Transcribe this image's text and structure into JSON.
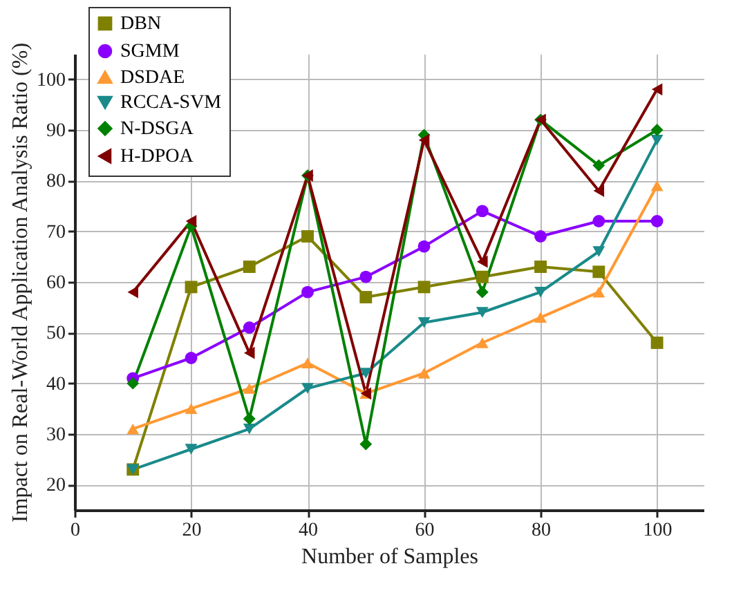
{
  "chart_data": {
    "type": "line",
    "xlabel": "Number of Samples",
    "ylabel": "Impact on Real-World Application Analysis Ratio (%)",
    "x": [
      10,
      20,
      30,
      40,
      50,
      60,
      70,
      80,
      90,
      100
    ],
    "series": [
      {
        "name": "DBN",
        "color": "#808000",
        "marker": "square",
        "values": [
          23,
          59,
          63,
          69,
          57,
          59,
          61,
          63,
          62,
          48
        ]
      },
      {
        "name": "SGMM",
        "color": "#8a00ff",
        "marker": "circle",
        "values": [
          41,
          45,
          51,
          58,
          61,
          67,
          74,
          69,
          72,
          72
        ]
      },
      {
        "name": "DSDAE",
        "color": "#ff9933",
        "marker": "triangle",
        "values": [
          31,
          35,
          39,
          44,
          38,
          42,
          48,
          53,
          58,
          79
        ]
      },
      {
        "name": "RCCA-SVM",
        "color": "#1a8a8a",
        "marker": "triangle-down",
        "values": [
          23,
          27,
          31,
          39,
          42,
          52,
          54,
          58,
          66,
          88
        ]
      },
      {
        "name": "N-DSGA",
        "color": "#008000",
        "marker": "diamond",
        "values": [
          40,
          71,
          33,
          81,
          28,
          89,
          58,
          92,
          83,
          90
        ]
      },
      {
        "name": "H-DPOA",
        "color": "#800000",
        "marker": "triangle-left",
        "values": [
          58,
          72,
          46,
          81,
          38,
          88,
          64,
          92,
          78,
          98
        ]
      }
    ],
    "xlim": [
      0,
      108
    ],
    "ylim": [
      15,
      105
    ],
    "xticks": [
      0,
      20,
      40,
      60,
      80,
      100
    ],
    "yticks": [
      20,
      30,
      40,
      50,
      60,
      70,
      80,
      90,
      100
    ],
    "grid": true,
    "legend": "top left"
  }
}
